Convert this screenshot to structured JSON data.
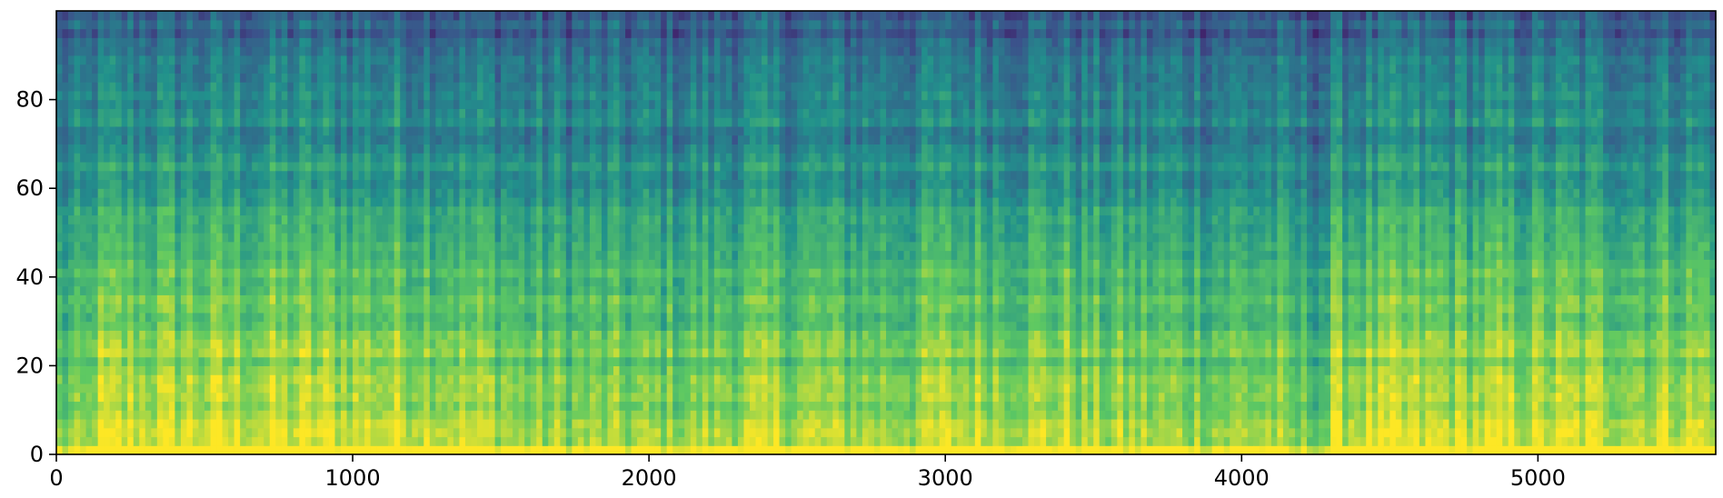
{
  "chart_data": {
    "type": "heatmap",
    "title": "",
    "xlabel": "",
    "ylabel": "",
    "xlim": [
      0,
      5600
    ],
    "ylim": [
      0,
      100
    ],
    "colormap": "viridis",
    "colormap_stops": [
      "#440154",
      "#3b528b",
      "#21918c",
      "#5ec962",
      "#fde725"
    ],
    "x_ticks": [
      {
        "value": 0,
        "label": "0"
      },
      {
        "value": 1000,
        "label": "1000"
      },
      {
        "value": 2000,
        "label": "2000"
      },
      {
        "value": 3000,
        "label": "3000"
      },
      {
        "value": 4000,
        "label": "4000"
      },
      {
        "value": 5000,
        "label": "5000"
      }
    ],
    "y_ticks": [
      {
        "value": 0,
        "label": "0"
      },
      {
        "value": 20,
        "label": "20"
      },
      {
        "value": 40,
        "label": "40"
      },
      {
        "value": 60,
        "label": "60"
      },
      {
        "value": 80,
        "label": "80"
      }
    ],
    "grid": false,
    "legend": "none",
    "segments": [
      {
        "x_start": 0,
        "x_end": 130,
        "level": 0.4
      },
      {
        "x_start": 130,
        "x_end": 1370,
        "level": 0.62
      },
      {
        "x_start": 1370,
        "x_end": 1530,
        "level": 0.56
      },
      {
        "x_start": 1530,
        "x_end": 2250,
        "level": 0.48
      },
      {
        "x_start": 2250,
        "x_end": 2600,
        "level": 0.55
      },
      {
        "x_start": 2600,
        "x_end": 2950,
        "level": 0.52
      },
      {
        "x_start": 2950,
        "x_end": 3450,
        "level": 0.58
      },
      {
        "x_start": 3450,
        "x_end": 4150,
        "level": 0.5
      },
      {
        "x_start": 4150,
        "x_end": 4300,
        "level": 0.38
      },
      {
        "x_start": 4300,
        "x_end": 5600,
        "level": 0.6
      }
    ]
  }
}
